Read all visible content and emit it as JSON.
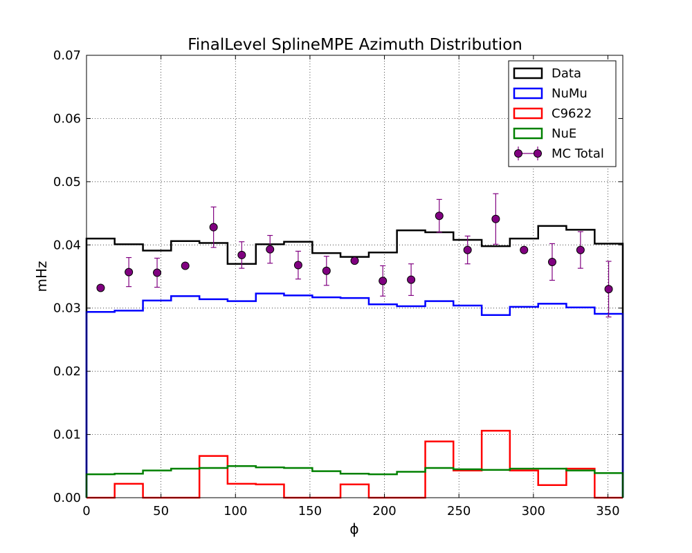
{
  "chart_data": {
    "type": "step",
    "title": "FinalLevel SplineMPE Azimuth Distribution",
    "xlabel": "ϕ",
    "ylabel": "mHz",
    "xlim": [
      0,
      360
    ],
    "ylim": [
      0,
      0.07
    ],
    "xticks": [
      0,
      50,
      100,
      150,
      200,
      250,
      300,
      350
    ],
    "yticks": [
      0.0,
      0.01,
      0.02,
      0.03,
      0.04,
      0.05,
      0.06,
      0.07
    ],
    "ytick_labels": [
      "0.00",
      "0.01",
      "0.02",
      "0.03",
      "0.04",
      "0.05",
      "0.06",
      "0.07"
    ],
    "grid": true,
    "legend_position": "top-right",
    "bin_edges": [
      0,
      18.9,
      37.9,
      56.8,
      75.8,
      94.7,
      113.7,
      132.6,
      151.6,
      170.5,
      189.5,
      208.4,
      227.4,
      246.3,
      265.3,
      284.2,
      303.2,
      322.1,
      341.1,
      360
    ],
    "series": [
      {
        "name": "Data",
        "color": "#000000",
        "values": [
          0.041,
          0.0401,
          0.0391,
          0.0406,
          0.0403,
          0.037,
          0.0401,
          0.0405,
          0.0387,
          0.0381,
          0.0388,
          0.0423,
          0.042,
          0.0408,
          0.0398,
          0.041,
          0.043,
          0.0424,
          0.0402
        ]
      },
      {
        "name": "NuMu",
        "color": "#0000ff",
        "values": [
          0.0294,
          0.0296,
          0.0312,
          0.0319,
          0.0314,
          0.0311,
          0.0323,
          0.032,
          0.0317,
          0.0316,
          0.0306,
          0.0303,
          0.0311,
          0.0304,
          0.0289,
          0.0302,
          0.0307,
          0.0301,
          0.0291
        ]
      },
      {
        "name": "C9622",
        "color": "#ff0000",
        "values": [
          0.0,
          0.0022,
          0.0,
          0.0,
          0.0066,
          0.0022,
          0.0021,
          0.0,
          0.0,
          0.0021,
          0.0,
          0.0,
          0.0089,
          0.0043,
          0.0106,
          0.0043,
          0.002,
          0.0046,
          0.0
        ]
      },
      {
        "name": "NuE",
        "color": "#008000",
        "values": [
          0.0037,
          0.0038,
          0.0043,
          0.0046,
          0.0047,
          0.005,
          0.0048,
          0.0047,
          0.0042,
          0.0038,
          0.0037,
          0.0041,
          0.0047,
          0.0045,
          0.0044,
          0.0046,
          0.0046,
          0.0043,
          0.0039
        ]
      }
    ],
    "points": {
      "name": "MC Total",
      "color": "#800080",
      "x": [
        9.5,
        28.4,
        47.4,
        66.3,
        85.3,
        104.2,
        123.2,
        142.1,
        161.1,
        180.0,
        198.9,
        217.9,
        236.8,
        255.8,
        274.7,
        293.7,
        312.6,
        331.6,
        350.5
      ],
      "y": [
        0.0332,
        0.0357,
        0.0356,
        0.0367,
        0.0428,
        0.0384,
        0.0393,
        0.0368,
        0.0359,
        0.0375,
        0.0343,
        0.0345,
        0.0446,
        0.0392,
        0.0441,
        0.0392,
        0.0373,
        0.0392,
        0.033
      ],
      "err": [
        0,
        0.0023,
        0.0023,
        0,
        0.0032,
        0.0021,
        0.0022,
        0.0022,
        0.0023,
        0,
        0.0024,
        0.0025,
        0.0026,
        0.0022,
        0.004,
        0,
        0.0029,
        0.0029,
        0.0044
      ]
    }
  }
}
